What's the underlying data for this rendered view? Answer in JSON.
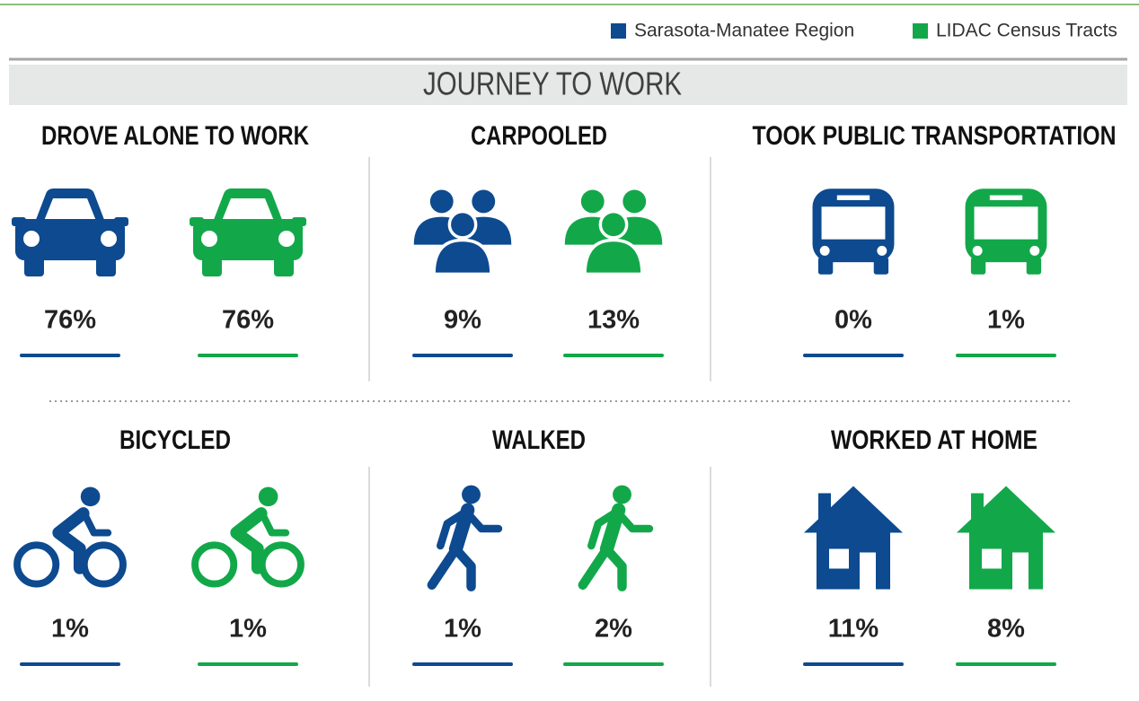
{
  "legend": [
    {
      "label": "Sarasota-Manatee Region",
      "color": "#0d4a8f"
    },
    {
      "label": "LIDAC Census Tracts",
      "color": "#12a84a"
    }
  ],
  "title": "JOURNEY TO WORK",
  "panels": [
    {
      "title": "DROVE ALONE TO WORK",
      "values": [
        "76%",
        "76%"
      ]
    },
    {
      "title": "CARPOOLED",
      "values": [
        "9%",
        "13%"
      ]
    },
    {
      "title": "TOOK PUBLIC TRANSPORTATION",
      "values": [
        "0%",
        "1%"
      ]
    },
    {
      "title": "BICYCLED",
      "values": [
        "1%",
        "1%"
      ]
    },
    {
      "title": "WALKED",
      "values": [
        "1%",
        "2%"
      ]
    },
    {
      "title": "WORKED AT HOME",
      "values": [
        "11%",
        "8%"
      ]
    }
  ]
}
